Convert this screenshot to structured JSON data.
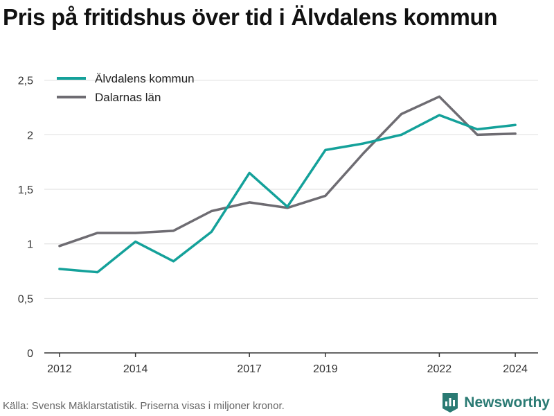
{
  "header": {
    "title": "Pris på fritidshus över tid i Älvdalens kommun"
  },
  "footer": {
    "source": "Källa: Svensk Mäklarstatistik. Priserna visas i miljoner kronor.",
    "brand": "Newsworthy",
    "brand_icon": "bar-chart-icon"
  },
  "colors": {
    "alvdalen": "#14a19a",
    "dalarna": "#6e6c72",
    "grid": "#dedede",
    "axis": "#333333",
    "brand": "#2a7a73"
  },
  "chart_data": {
    "type": "line",
    "title": "Pris på fritidshus över tid i Älvdalens kommun",
    "xlabel": "",
    "ylabel": "",
    "x": [
      2012,
      2013,
      2014,
      2015,
      2016,
      2017,
      2018,
      2019,
      2020,
      2021,
      2022,
      2023,
      2024
    ],
    "xlim": [
      2011.6,
      2024.6
    ],
    "ylim": [
      0,
      2.6
    ],
    "x_ticks": [
      2012,
      2014,
      2017,
      2019,
      2022,
      2024
    ],
    "x_tick_labels": [
      "2012",
      "2014",
      "2017",
      "2019",
      "2022",
      "2024"
    ],
    "y_ticks": [
      0,
      0.5,
      1,
      1.5,
      2,
      2.5
    ],
    "y_tick_labels": [
      "0",
      "0,5",
      "1",
      "1,5",
      "2",
      "2,5"
    ],
    "grid": true,
    "legend": "top-left",
    "series": [
      {
        "name": "Älvdalens kommun",
        "color": "#14a19a",
        "values": [
          0.77,
          0.74,
          1.02,
          0.84,
          1.11,
          1.65,
          1.34,
          1.86,
          1.92,
          2.0,
          2.18,
          2.05,
          2.09
        ]
      },
      {
        "name": "Dalarnas län",
        "color": "#6e6c72",
        "values": [
          0.98,
          1.1,
          1.1,
          1.12,
          1.3,
          1.38,
          1.33,
          1.44,
          1.83,
          2.19,
          2.35,
          2.0,
          2.01
        ]
      }
    ]
  }
}
